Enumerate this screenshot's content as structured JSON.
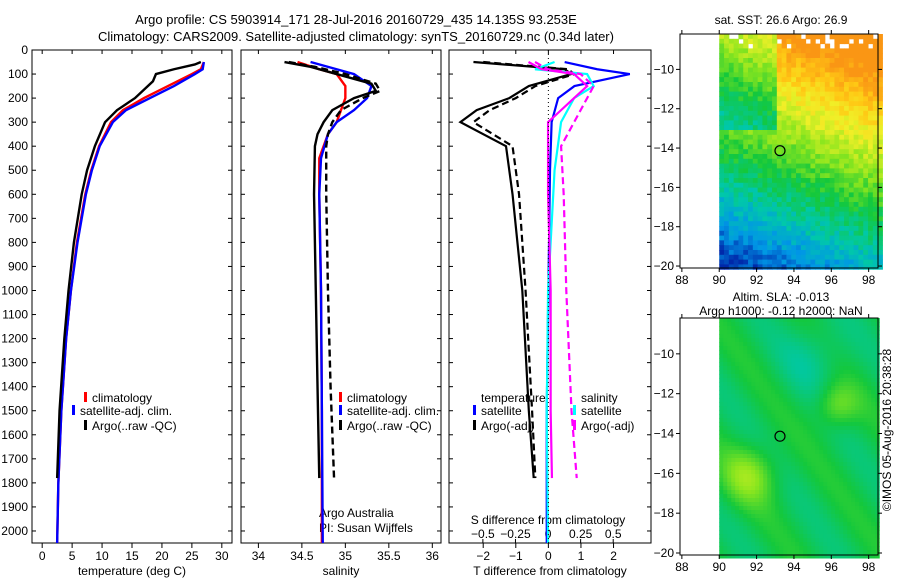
{
  "title": {
    "line1": "Argo profile: CS 5903914_171 28-Jul-2016 20160729_435 14.135S 93.253E",
    "line2": "Climatology: CARS2009. Satellite-adjusted climatology: synTS_20160729.nc (0.34d later)"
  },
  "chart_data": [
    {
      "type": "line",
      "id": "temperature",
      "xlabel": "temperature (deg C)",
      "ylabel": "",
      "xlim": [
        -1.7,
        31.7
      ],
      "ylim": [
        0,
        2050
      ],
      "xticks": [
        0,
        5,
        10,
        15,
        20,
        25,
        30
      ],
      "yticks": [
        0,
        100,
        200,
        300,
        400,
        500,
        600,
        700,
        800,
        900,
        1000,
        1100,
        1200,
        1300,
        1400,
        1500,
        1600,
        1700,
        1800,
        1900,
        2000
      ],
      "legend": [
        "climatology",
        "satellite-adj. clim.",
        "Argo(..raw -QC)"
      ],
      "legend_placement": "bottom-right",
      "series": [
        {
          "name": "climatology",
          "color": "#ff0000",
          "dash": false,
          "depth": [
            50,
            80,
            100,
            150,
            200,
            250,
            300,
            400,
            500,
            600,
            800,
            1000,
            1200,
            1500,
            1800,
            2050
          ],
          "values": [
            27,
            26.5,
            25,
            21,
            17,
            13.5,
            11.5,
            9.5,
            8.2,
            7.2,
            5.8,
            4.8,
            4,
            3.2,
            2.7,
            2.5
          ]
        },
        {
          "name": "satellite-adj. clim.",
          "color": "#0000ff",
          "dash": false,
          "depth": [
            50,
            80,
            100,
            150,
            200,
            250,
            300,
            400,
            500,
            600,
            800,
            1000,
            1200,
            1500,
            1800,
            2050
          ],
          "values": [
            27,
            26.8,
            25.5,
            22,
            18,
            14,
            11.8,
            9.6,
            8.3,
            7.3,
            5.9,
            4.8,
            4,
            3.2,
            2.7,
            2.5
          ]
        },
        {
          "name": "Argo(..raw -QC)",
          "color": "#000000",
          "dash": false,
          "depth": [
            50,
            60,
            80,
            100,
            130,
            200,
            250,
            300,
            400,
            500,
            600,
            800,
            1000,
            1200,
            1500,
            1780
          ],
          "values": [
            26.5,
            25.5,
            22,
            19,
            18.5,
            15.5,
            12.5,
            10.5,
            8.8,
            7.5,
            6.6,
            5.3,
            4.4,
            3.7,
            2.9,
            2.5
          ]
        }
      ]
    },
    {
      "type": "line",
      "id": "salinity",
      "xlabel": "salinity",
      "xlim": [
        33.8,
        36.1
      ],
      "ylim": [
        0,
        2050
      ],
      "xticks": [
        34,
        34.5,
        35,
        35.5,
        36
      ],
      "legend": [
        "climatology",
        "satellite-adj. clim.",
        "Argo(..raw -QC)"
      ],
      "legend_placement": "bottom-right",
      "annotations": [
        "Argo Australia",
        "PI: Susan Wijffels"
      ],
      "series": [
        {
          "name": "climatology",
          "color": "#ff0000",
          "dash": false,
          "depth": [
            50,
            80,
            100,
            150,
            200,
            250,
            300,
            350,
            450,
            600,
            1000,
            1500,
            2050
          ],
          "values": [
            34.45,
            34.7,
            34.9,
            35.0,
            35.0,
            34.95,
            34.9,
            34.8,
            34.7,
            34.7,
            34.72,
            34.73,
            34.73
          ]
        },
        {
          "name": "satellite-adj. clim.",
          "color": "#0000ff",
          "dash": false,
          "depth": [
            50,
            80,
            100,
            150,
            200,
            250,
            300,
            350,
            450,
            600,
            1000,
            1500,
            2050
          ],
          "values": [
            34.6,
            34.9,
            35.1,
            35.3,
            35.25,
            35.1,
            34.9,
            34.8,
            34.72,
            34.7,
            34.72,
            34.73,
            34.74
          ]
        },
        {
          "name": "Argo(..raw -QC)",
          "color": "#000000",
          "dash": false,
          "depth": [
            50,
            70,
            100,
            140,
            170,
            200,
            250,
            300,
            350,
            400,
            600,
            1000,
            1400,
            1780
          ],
          "values": [
            34.3,
            34.6,
            34.9,
            35.3,
            35.35,
            35.1,
            34.85,
            34.75,
            34.68,
            34.65,
            34.64,
            34.66,
            34.68,
            34.7
          ]
        },
        {
          "name": "Argo raw",
          "color": "#000000",
          "dash": true,
          "depth": [
            50,
            70,
            100,
            140,
            170,
            200,
            250,
            300,
            350,
            400,
            600,
            1000,
            1400,
            1780
          ],
          "values": [
            34.35,
            34.65,
            35.0,
            35.35,
            35.4,
            35.2,
            34.95,
            34.85,
            34.8,
            34.78,
            34.78,
            34.8,
            34.83,
            34.87
          ]
        }
      ]
    },
    {
      "type": "line",
      "id": "difference",
      "xlabel": "T difference from climatology",
      "x2label": "S difference from climatology",
      "xlim": [
        -3.05,
        3.15
      ],
      "x2lim": [
        -0.76,
        0.79
      ],
      "ylim": [
        0,
        2050
      ],
      "xticks": [
        -2,
        -1,
        0,
        1,
        2
      ],
      "x2ticks": [
        "-0.5",
        "-0.25",
        "0",
        "0.25",
        "0.5"
      ],
      "x2tick_values": [
        -0.5,
        -0.25,
        0,
        0.25,
        0.5
      ],
      "legend_headers": [
        "temperature",
        "salinity"
      ],
      "legend": [
        "satellite",
        "Argo(-adj)",
        "satellite",
        "Argo(-adj)"
      ],
      "legend_placement": "bottom",
      "series": [
        {
          "name": "T satellite",
          "color": "#0000ff",
          "dash": false,
          "axis": "T",
          "depth": [
            50,
            80,
            100,
            150,
            200,
            300,
            500,
            1000,
            1500,
            2050
          ],
          "values": [
            0.5,
            1.5,
            2.5,
            0.8,
            0.3,
            0.1,
            0.05,
            0,
            -0.05,
            -0.05
          ]
        },
        {
          "name": "T Argo(-adj)",
          "color": "#000000",
          "dash": false,
          "axis": "T",
          "depth": [
            50,
            80,
            100,
            150,
            200,
            250,
            300,
            400,
            600,
            1000,
            1500,
            1780
          ],
          "values": [
            -2.3,
            0.5,
            0.7,
            -0.6,
            -1.2,
            -2.2,
            -2.7,
            -1.3,
            -1.1,
            -0.8,
            -0.6,
            -0.45
          ]
        },
        {
          "name": "T Argo raw",
          "color": "#000000",
          "dash": true,
          "axis": "T",
          "depth": [
            50,
            80,
            100,
            150,
            200,
            250,
            300,
            400,
            600,
            1000,
            1500,
            1780
          ],
          "values": [
            -2.0,
            0.6,
            0.8,
            -0.4,
            -1.0,
            -1.8,
            -2.3,
            -1.1,
            -0.9,
            -0.7,
            -0.5,
            -0.4
          ]
        },
        {
          "name": "S satellite",
          "color": "#00ffff",
          "dash": false,
          "axis": "S",
          "depth": [
            50,
            80,
            100,
            150,
            200,
            300,
            500,
            1000,
            1500,
            2050
          ],
          "values": [
            0.05,
            -0.1,
            0.3,
            0.35,
            0.2,
            0.1,
            0.05,
            0,
            -0.01,
            0
          ]
        },
        {
          "name": "S Argo(-adj)",
          "color": "#ff00ff",
          "dash": false,
          "axis": "S",
          "depth": [
            50,
            80,
            100,
            150,
            200,
            250,
            300,
            400,
            600,
            1000,
            1500,
            1780
          ],
          "values": [
            -0.15,
            -0.05,
            0.2,
            0.3,
            0.2,
            0.1,
            0.0,
            0.0,
            0.0,
            0.02,
            0.02,
            0.03
          ]
        },
        {
          "name": "S Argo raw",
          "color": "#ff00ff",
          "dash": true,
          "axis": "S",
          "depth": [
            50,
            80,
            100,
            150,
            200,
            250,
            300,
            400,
            600,
            1000,
            1500,
            1780
          ],
          "values": [
            -0.1,
            0.0,
            0.25,
            0.35,
            0.3,
            0.25,
            0.2,
            0.1,
            0.12,
            0.14,
            0.18,
            0.22
          ]
        }
      ]
    },
    {
      "type": "heatmap",
      "id": "sst-map",
      "title": "sat. SST: 26.6 Argo: 26.9",
      "xlim": [
        87.9,
        98.5
      ],
      "ylim": [
        -20.1,
        -8.2
      ],
      "xticks": [
        88,
        90,
        92,
        94,
        96,
        98
      ],
      "yticks": [
        -10,
        -12,
        -14,
        -16,
        -18,
        -20
      ],
      "argo_position": [
        93.253,
        -14.135
      ]
    },
    {
      "type": "heatmap",
      "id": "sla-map",
      "title": "Altim. SLA: -0.013",
      "subtitle": "Argo h1000: -0.12 h2000: NaN",
      "xlim": [
        87.9,
        98.5
      ],
      "ylim": [
        -20.1,
        -8.2
      ],
      "xticks": [
        88,
        90,
        92,
        94,
        96,
        98
      ],
      "yticks": [
        -10,
        -12,
        -14,
        -16,
        -18,
        -20
      ],
      "argo_position": [
        93.253,
        -14.135
      ]
    }
  ],
  "credit": "©IMOS 05-Aug-2016 20:38:28"
}
